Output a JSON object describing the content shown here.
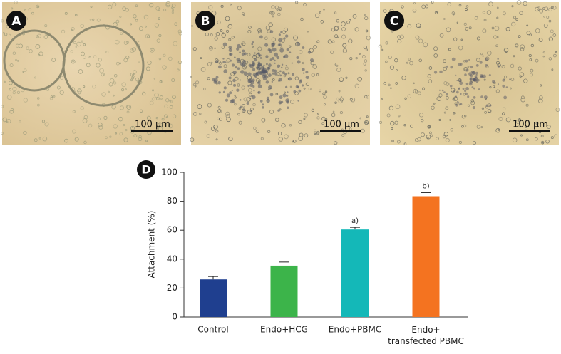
{
  "panels": [
    {
      "label": "A",
      "scale_bar": "100 μm"
    },
    {
      "label": "B",
      "scale_bar": "100 μm"
    },
    {
      "label": "C",
      "scale_bar": "100 μm"
    }
  ],
  "chart_data": {
    "type": "bar",
    "panel_label": "D",
    "y_label": "Attachment (%)",
    "categories": [
      "Control",
      "Endo+HCG",
      "Endo+PBMC",
      "Endo+\ntransfected PBMC"
    ],
    "values": [
      26,
      35.5,
      60.5,
      83.5
    ],
    "errors": [
      2,
      2.5,
      1.5,
      2.5
    ],
    "annotations": [
      null,
      null,
      "a)",
      "b)"
    ],
    "colors": [
      "#1f3f8f",
      "#3cb44a",
      "#14b8b8",
      "#f47320"
    ],
    "ylim": [
      0,
      100
    ],
    "yticks": [
      0,
      20,
      40,
      60,
      80,
      100
    ]
  }
}
